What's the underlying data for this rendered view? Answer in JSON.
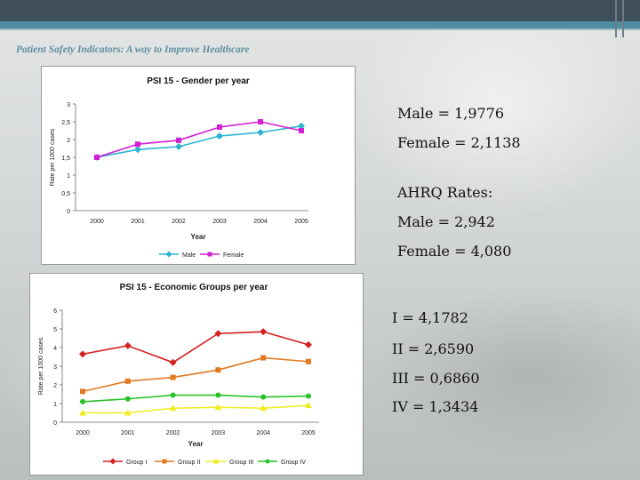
{
  "slide": {
    "subtitle": "Patient Safety Indicators: A way to Improve Healthcare",
    "stats_top": [
      "Male = 1,9776",
      "Female = 2,1138",
      "AHRQ Rates:",
      "Male = 2,942",
      "Female = 4,080"
    ],
    "stats_bottom": [
      "I = 4,1782",
      "II = 2,6590",
      "III = 0,6860",
      "IV = 1,3434"
    ]
  },
  "chart_data": [
    {
      "type": "line",
      "title": "PSI 15 - Gender per year",
      "xlabel": "Year",
      "ylabel": "Rate per 1000 cases",
      "categories": [
        "2000",
        "2001",
        "2002",
        "2003",
        "2004",
        "2005"
      ],
      "y_ticks": [
        "0",
        "0,5",
        "1",
        "1,5",
        "2",
        "2,5",
        "3"
      ],
      "ylim": [
        0,
        3
      ],
      "grid": false,
      "legend": "bottom",
      "series": [
        {
          "name": "Male",
          "color": "#2ab4d2",
          "marker": "diamond",
          "values": [
            1.5,
            1.72,
            1.8,
            2.1,
            2.2,
            2.38
          ]
        },
        {
          "name": "Female",
          "color": "#d21fd2",
          "marker": "square",
          "values": [
            1.5,
            1.87,
            1.98,
            2.35,
            2.5,
            2.25
          ]
        }
      ]
    },
    {
      "type": "line",
      "title": "PSI 15 - Economic Groups per year",
      "xlabel": "Year",
      "ylabel": "Rate per 1000 cases",
      "categories": [
        "2000",
        "2001",
        "2002",
        "2003",
        "2004",
        "2005"
      ],
      "y_ticks": [
        "0",
        "1",
        "2",
        "3",
        "4",
        "5",
        "6"
      ],
      "ylim": [
        0,
        6
      ],
      "grid": false,
      "legend": "bottom",
      "series": [
        {
          "name": "Group I",
          "color": "#d42020",
          "marker": "diamond",
          "values": [
            3.65,
            4.1,
            3.2,
            4.75,
            4.85,
            4.15
          ]
        },
        {
          "name": "Group II",
          "color": "#e27a22",
          "marker": "square",
          "values": [
            1.65,
            2.2,
            2.4,
            2.8,
            3.45,
            3.25
          ]
        },
        {
          "name": "Group III",
          "color": "#eded20",
          "marker": "triangle",
          "values": [
            0.5,
            0.5,
            0.75,
            0.8,
            0.75,
            0.9
          ]
        },
        {
          "name": "Group IV",
          "color": "#27c227",
          "marker": "circle",
          "values": [
            1.1,
            1.25,
            1.45,
            1.45,
            1.35,
            1.4
          ]
        }
      ]
    }
  ]
}
